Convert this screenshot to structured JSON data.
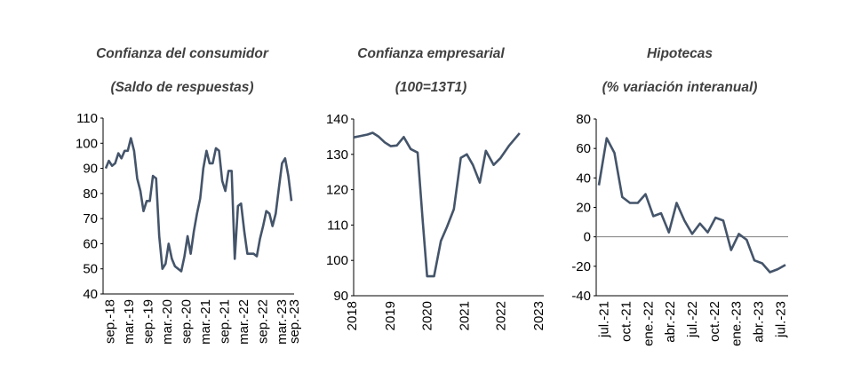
{
  "chart_data": [
    {
      "type": "line",
      "title": "Confianza del consumidor",
      "subtitle": "(Saldo de respuestas)",
      "color": "#44546A",
      "ylim": [
        40,
        110
      ],
      "yticks": [
        "110",
        "100",
        "90",
        "80",
        "70",
        "60",
        "50",
        "40"
      ],
      "xticks": [
        "sep.-18",
        "mar.-19",
        "sep.-19",
        "mar.-20",
        "sep.-20",
        "mar.-21",
        "sep.-21",
        "mar.-22",
        "sep.-22",
        "mar.-23",
        "sep.-23"
      ],
      "x_range": [
        0,
        60
      ],
      "values": [
        90,
        93,
        91,
        92,
        96,
        94,
        97,
        97,
        102,
        97,
        86,
        81,
        73,
        77,
        77,
        87,
        86,
        63,
        50,
        52,
        60,
        54,
        51,
        50,
        49,
        55,
        63,
        56,
        65,
        72,
        78,
        90,
        97,
        92,
        92,
        98,
        97,
        85,
        81,
        89,
        89,
        54,
        75,
        76,
        65,
        56,
        56,
        56,
        55,
        62,
        67,
        73,
        72,
        67,
        72,
        82,
        92,
        94,
        87,
        77
      ]
    },
    {
      "type": "line",
      "title": "Confianza empresarial",
      "subtitle": "(100=13T1)",
      "color": "#44546A",
      "ylim": [
        90,
        140
      ],
      "yticks": [
        "140",
        "130",
        "120",
        "110",
        "100",
        "90"
      ],
      "xticks": [
        "2018",
        "2019",
        "2020",
        "2021",
        "2022",
        "2023"
      ],
      "x_range": [
        0,
        22
      ],
      "values": [
        134.8,
        135.2,
        135.6,
        136.1,
        135.0,
        133.4,
        132.3,
        132.5,
        134.9,
        131.5,
        130.5,
        111.0,
        95.5,
        95.5,
        105.5,
        109.5,
        114.5,
        129.0,
        130.0,
        127.0,
        122.0,
        131.0,
        127.0,
        129.0,
        132.5,
        136.0
      ],
      "x": [
        0,
        0.8,
        1.6,
        2.2,
        2.9,
        3.6,
        4.3,
        5.0,
        5.8,
        6.6,
        7.4,
        8.0,
        8.5,
        9.3,
        10.1,
        10.8,
        11.6,
        12.4,
        13.1,
        13.8,
        14.6,
        15.3,
        16.2,
        17.0,
        18.0,
        19.2
      ]
    },
    {
      "type": "line",
      "title": "Hipotecas",
      "subtitle": "(% variación interanual)",
      "color": "#44546A",
      "ylim": [
        -40,
        80
      ],
      "yticks": [
        "80",
        "60",
        "40",
        "20",
        "0",
        "-20",
        "-40"
      ],
      "xticks": [
        "jul.-21",
        "oct.-21",
        "ene.-22",
        "abr.-22",
        "jul.-22",
        "oct.-22",
        "ene.-23",
        "abr.-23",
        "jul.-23"
      ],
      "x_range": [
        0,
        24
      ],
      "values": [
        35,
        67,
        57,
        27,
        23,
        23,
        29,
        14,
        16,
        3,
        23,
        11,
        2,
        9,
        3,
        13,
        11,
        -9,
        2,
        -2,
        -16,
        -18,
        -24,
        -22,
        -19
      ]
    }
  ]
}
